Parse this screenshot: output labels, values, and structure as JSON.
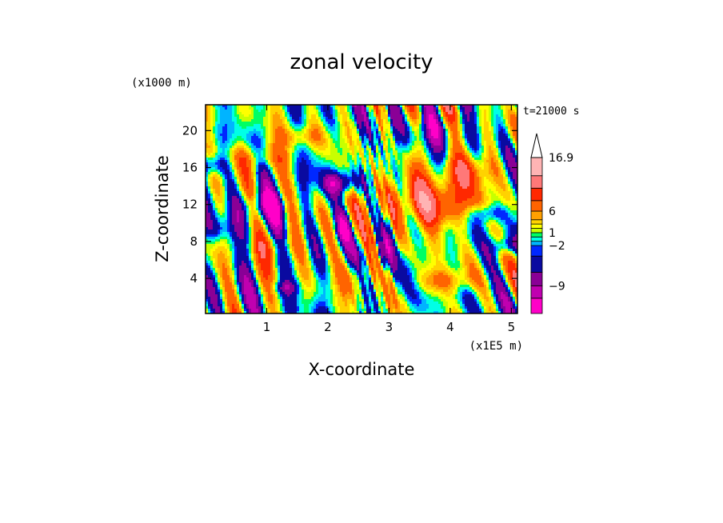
{
  "chart_data": {
    "type": "heatmap",
    "title": "zonal velocity",
    "xlabel": "X-coordinate",
    "ylabel": "Z-coordinate",
    "x_unit_label": "(x1E5 m)",
    "y_unit_label": "(x1000 m)",
    "time_label": "t=21000 s",
    "xlim": [
      0,
      5.1
    ],
    "ylim": [
      0.2,
      22.8
    ],
    "x_ticks": [
      1,
      2,
      3,
      4,
      5
    ],
    "x_tick_labels": [
      "1",
      "2",
      "3",
      "4",
      "5"
    ],
    "y_ticks": [
      4,
      8,
      12,
      16,
      20
    ],
    "y_tick_labels": [
      "4",
      "8",
      "12",
      "16",
      "20"
    ],
    "colorbar": {
      "levels": [
        -15,
        -12,
        -9,
        -6,
        -3,
        -2,
        -1,
        0,
        1,
        2,
        3,
        4.5,
        6,
        9,
        12,
        16.9
      ],
      "colors": [
        "#ff00c8",
        "#c000b0",
        "#8a0096",
        "#0a0aa0",
        "#0028ff",
        "#00b4ff",
        "#00ffe6",
        "#00ff64",
        "#c8ff00",
        "#ffff00",
        "#ffd200",
        "#ffa000",
        "#ff6400",
        "#ff2800",
        "#ff7878",
        "#ffb4b4"
      ],
      "labels": [
        {
          "value": 16.9,
          "text": "16.9"
        },
        {
          "value": 6,
          "text": "6"
        },
        {
          "value": 1,
          "text": "1"
        },
        {
          "value": -2,
          "text": "−2"
        },
        {
          "value": -9,
          "text": "−9"
        }
      ],
      "extend": "max"
    }
  }
}
